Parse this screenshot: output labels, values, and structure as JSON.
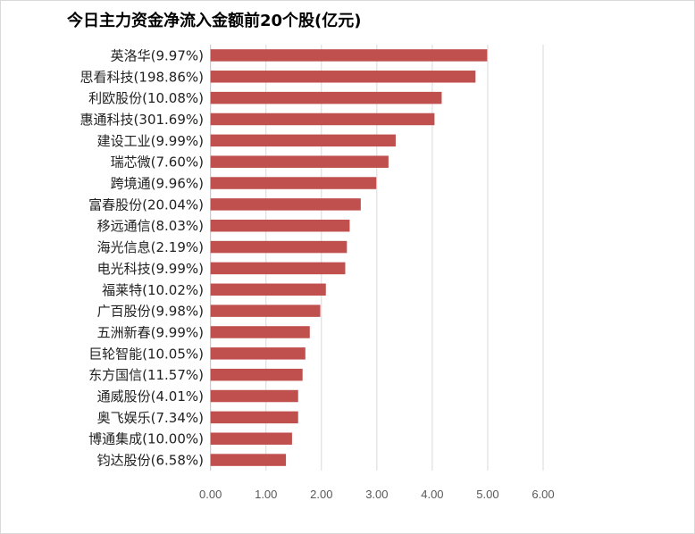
{
  "chart_data": {
    "type": "bar",
    "orientation": "horizontal",
    "title": "今日主力资金净流入金额前20个股(亿元)",
    "xlabel": "",
    "ylabel": "",
    "xlim": [
      0,
      6
    ],
    "ticks": [
      "0.00",
      "1.00",
      "2.00",
      "3.00",
      "4.00",
      "5.00",
      "6.00"
    ],
    "grid": true,
    "bar_color": "#c0504d",
    "categories": [
      "英洛华(9.97%)",
      "思看科技(198.86%)",
      "利欧股份(10.08%)",
      "惠通科技(301.69%)",
      "建设工业(9.99%)",
      "瑞芯微(7.60%)",
      "跨境通(9.96%)",
      "富春股份(20.04%)",
      "移远通信(8.03%)",
      "海光信息(2.19%)",
      "电光科技(9.99%)",
      "福莱特(10.02%)",
      "广百股份(9.98%)",
      "五洲新春(9.99%)",
      "巨轮智能(10.05%)",
      "东方国信(11.57%)",
      "通威股份(4.01%)",
      "奥飞娱乐(7.34%)",
      "博通集成(10.00%)",
      "钧达股份(6.58%)"
    ],
    "values": [
      4.99,
      4.78,
      4.17,
      4.04,
      3.34,
      3.21,
      2.99,
      2.71,
      2.51,
      2.46,
      2.43,
      2.08,
      1.98,
      1.79,
      1.71,
      1.66,
      1.58,
      1.58,
      1.47,
      1.36
    ]
  }
}
